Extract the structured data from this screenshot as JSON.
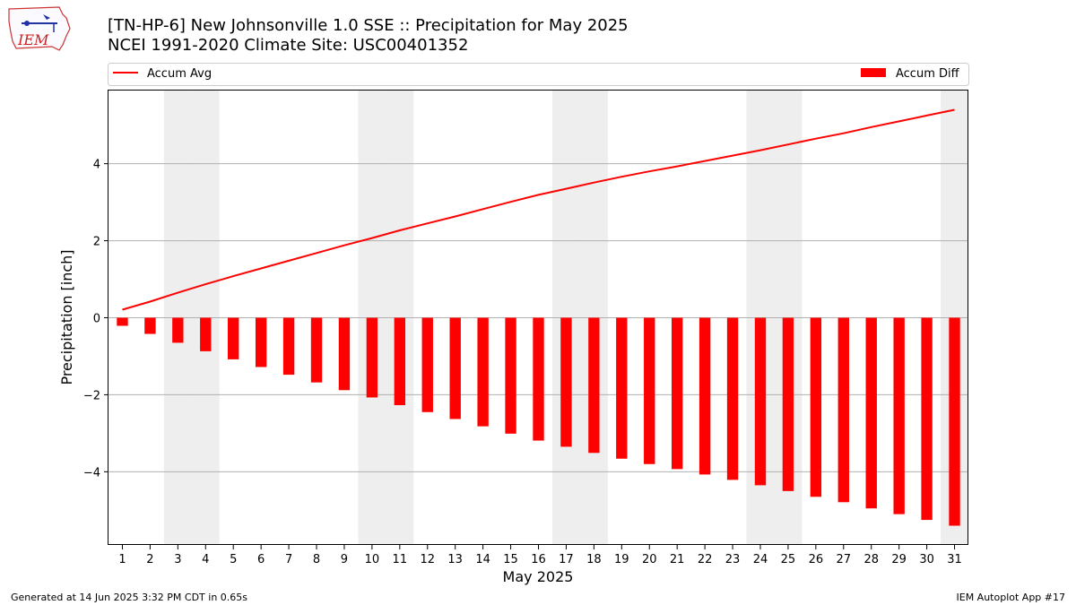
{
  "header": {
    "title_line1": "[TN-HP-6] New Johnsonville 1.0 SSE :: Precipitation for May 2025",
    "title_line2": "NCEI 1991-2020 Climate Site: USC00401352",
    "logo_text": "IEM"
  },
  "footer": {
    "generated": "Generated at 14 Jun 2025 3:32 PM CDT in 0.65s",
    "app": "IEM Autoplot App #17"
  },
  "colors": {
    "series": "#ff0000",
    "weekend_band": "#eeeeee",
    "grid": "#b0b0b0"
  },
  "chart_data": {
    "type": "bar",
    "xlabel": "May 2025",
    "ylabel": "Precipitation [inch]",
    "xlim": [
      0.5,
      31.5
    ],
    "ylim": [
      -5.9,
      5.9
    ],
    "yticks": [
      -4,
      -2,
      0,
      2,
      4
    ],
    "ytick_labels": [
      "−4",
      "−2",
      "0",
      "2",
      "4"
    ],
    "grid": "horizontal",
    "legend_placement": "top, outside plot",
    "categories": [
      "1",
      "2",
      "3",
      "4",
      "5",
      "6",
      "7",
      "8",
      "9",
      "10",
      "11",
      "12",
      "13",
      "14",
      "15",
      "16",
      "17",
      "18",
      "19",
      "20",
      "21",
      "22",
      "23",
      "24",
      "25",
      "26",
      "27",
      "28",
      "29",
      "30",
      "31"
    ],
    "weekend_days": [
      3,
      4,
      10,
      11,
      17,
      18,
      24,
      25,
      31
    ],
    "series": [
      {
        "name": "Accum Avg",
        "kind": "line",
        "values": [
          0.21,
          0.42,
          0.65,
          0.87,
          1.08,
          1.28,
          1.48,
          1.68,
          1.88,
          2.07,
          2.27,
          2.45,
          2.63,
          2.82,
          3.01,
          3.19,
          3.35,
          3.51,
          3.66,
          3.8,
          3.93,
          4.07,
          4.21,
          4.35,
          4.5,
          4.65,
          4.79,
          4.95,
          5.1,
          5.25,
          5.4
        ]
      },
      {
        "name": "Accum Diff",
        "kind": "bar",
        "values": [
          -0.21,
          -0.42,
          -0.65,
          -0.87,
          -1.08,
          -1.28,
          -1.48,
          -1.68,
          -1.88,
          -2.07,
          -2.27,
          -2.45,
          -2.63,
          -2.82,
          -3.01,
          -3.19,
          -3.35,
          -3.51,
          -3.66,
          -3.8,
          -3.93,
          -4.07,
          -4.21,
          -4.35,
          -4.5,
          -4.65,
          -4.79,
          -4.95,
          -5.1,
          -5.25,
          -5.4
        ]
      }
    ]
  }
}
